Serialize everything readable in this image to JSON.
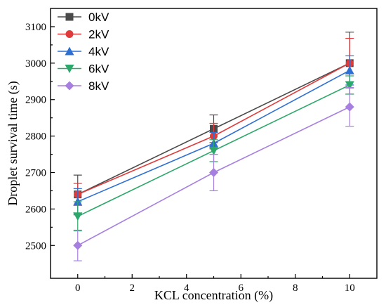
{
  "chart_data": {
    "type": "line",
    "title": "",
    "xlabel": "KCL concentration (%)",
    "ylabel": "Droplet survival time (s)",
    "xlim": [
      -1,
      11
    ],
    "ylim": [
      2410,
      3150
    ],
    "xticks": [
      0,
      2,
      4,
      6,
      8,
      10
    ],
    "yticks": [
      2500,
      2600,
      2700,
      2800,
      2900,
      3000,
      3100
    ],
    "legend_position": "top-left",
    "x": [
      0,
      5,
      10
    ],
    "series": [
      {
        "name": "0kV",
        "color": "#4a4a4a",
        "marker": "square",
        "values": [
          2640,
          2820,
          3000
        ],
        "errors": [
          53,
          38,
          85
        ]
      },
      {
        "name": "2kV",
        "color": "#e03a3a",
        "marker": "circle",
        "values": [
          2640,
          2800,
          3000
        ],
        "errors": [
          30,
          35,
          68
        ]
      },
      {
        "name": "4kV",
        "color": "#2d6fd2",
        "marker": "triangle-up",
        "values": [
          2620,
          2780,
          2980
        ],
        "errors": [
          36,
          30,
          40
        ]
      },
      {
        "name": "6kV",
        "color": "#2ea86a",
        "marker": "triangle-down",
        "values": [
          2580,
          2760,
          2940
        ],
        "errors": [
          40,
          30,
          25
        ]
      },
      {
        "name": "8kV",
        "color": "#a77fe0",
        "marker": "diamond",
        "values": [
          2500,
          2700,
          2880
        ],
        "errors": [
          42,
          50,
          53
        ]
      }
    ]
  }
}
